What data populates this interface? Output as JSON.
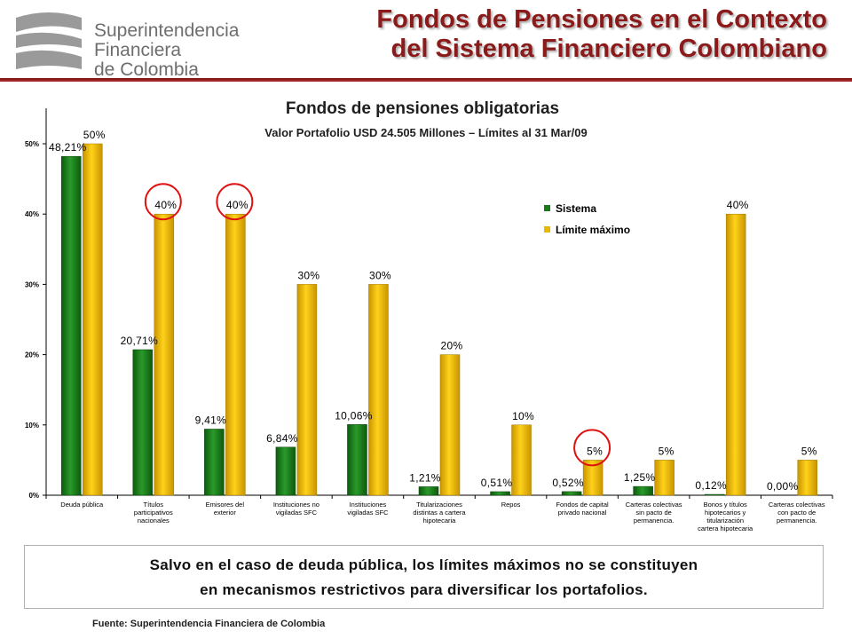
{
  "header": {
    "logo": {
      "line1": "Superintendencia",
      "line2": "Financiera",
      "line3": "de Colombia"
    },
    "title_line1": "Fondos de Pensiones en el Contexto",
    "title_line2": "del Sistema Financiero Colombiano"
  },
  "chart_data": {
    "type": "bar",
    "title": "Fondos de pensiones obligatorias",
    "subtitle": "Valor Portafolio USD 24.505 Millones – Límites al 31 Mar/09",
    "ylim": [
      0,
      50
    ],
    "yticks": [
      0,
      10,
      20,
      30,
      40,
      50
    ],
    "ytick_labels": [
      "0%",
      "10%",
      "20%",
      "30%",
      "40%",
      "50%"
    ],
    "grid": false,
    "legend_position": "top-right",
    "categories": [
      [
        "Deuda pública"
      ],
      [
        "Títulos",
        "participativos",
        "nacionales"
      ],
      [
        "Emisores del",
        "exterior"
      ],
      [
        "Instituciones no",
        "vigiladas SFC"
      ],
      [
        "Instituciones",
        "vigiladas SFC"
      ],
      [
        "Titularizaciones",
        "distintas a cartera",
        "hipotecaria"
      ],
      [
        "Repos"
      ],
      [
        "Fondos de capital",
        "privado nacional"
      ],
      [
        "Carteras colectivas",
        "sin pacto de",
        "permanencia."
      ],
      [
        "Bonos y títulos",
        "hipotecarios y",
        "titularización",
        "cartera hipotecaria"
      ],
      [
        "Carteras colectivas",
        "con pacto de",
        "permanencia."
      ]
    ],
    "series": [
      {
        "name": "Sistema",
        "color": "#1a7a1a",
        "values": [
          48.21,
          20.71,
          9.41,
          6.84,
          10.06,
          1.21,
          0.51,
          0.52,
          1.25,
          0.12,
          0.0
        ],
        "labels": [
          "48,21%",
          "20,71%",
          "9,41%",
          "6,84%",
          "10,06%",
          "1,21%",
          "0,51%",
          "0,52%",
          "1,25%",
          "0,12%",
          "0,00%"
        ]
      },
      {
        "name": "Límite máximo",
        "color": "#e8b800",
        "values": [
          50,
          40,
          40,
          30,
          30,
          20,
          10,
          5,
          5,
          40,
          5
        ],
        "labels": [
          "50%",
          "40%",
          "40%",
          "30%",
          "30%",
          "20%",
          "10%",
          "5%",
          "5%",
          "40%",
          "5%"
        ]
      }
    ],
    "highlighted_categories": [
      1,
      2,
      7
    ]
  },
  "note": {
    "line1": "Salvo en el caso de deuda pública, los límites máximos no se constituyen",
    "line2": "en mecanismos restrictivos para diversificar los portafolios."
  },
  "source": "Fuente:  Superintendencia Financiera de Colombia"
}
